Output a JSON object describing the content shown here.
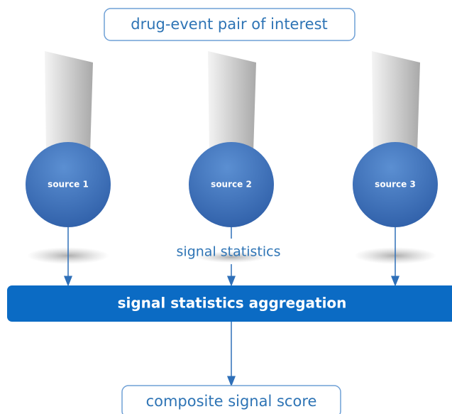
{
  "query": "drug-event pair of interest",
  "sources": [
    "source 1",
    "source 2",
    "source 3"
  ],
  "edge_label": "signal statistics",
  "aggregation": "signal statistics aggregation",
  "output": "composite signal score"
}
